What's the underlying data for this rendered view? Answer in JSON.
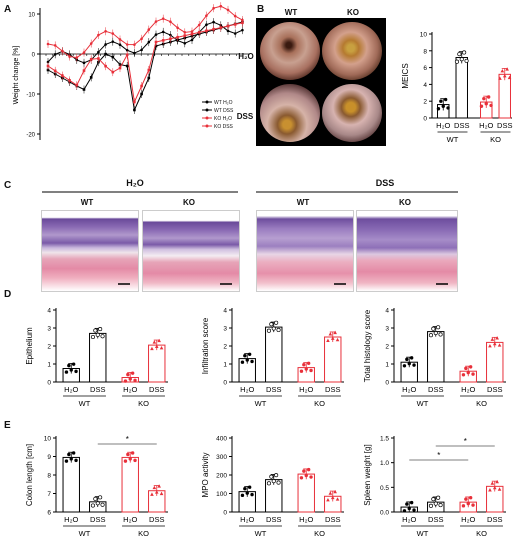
{
  "panels": {
    "A": "A",
    "B": "B",
    "C": "C",
    "D": "D",
    "E": "E"
  },
  "conditions": {
    "h2o": "H₂O",
    "dss": "DSS",
    "wt": "WT",
    "ko": "KO"
  },
  "panelA": {
    "ylabel": "Weight change [%]",
    "yticks": [
      "10",
      "0",
      "-10",
      "-20"
    ],
    "legend": [
      "WT H₂O",
      "WT DSS",
      "KO H₂O",
      "KO DSS"
    ],
    "colors": [
      "#000000",
      "#000000",
      "#e8303a",
      "#e8303a"
    ]
  },
  "panelB": {
    "ylabel": "MEICS",
    "yticks": [
      "0",
      "2",
      "4",
      "6",
      "8",
      "10"
    ],
    "bars": [
      1.6,
      7.2,
      1.9,
      5.2
    ],
    "ymax": 10
  },
  "panelC": {
    "scale_bar": ""
  },
  "panelD": {
    "charts": [
      {
        "ylabel": "Epithelium",
        "yticks": [
          "0",
          "1",
          "2",
          "3",
          "4"
        ],
        "ymax": 4,
        "bars": [
          0.75,
          2.7,
          0.25,
          2.05
        ]
      },
      {
        "ylabel": "Infiltration score",
        "yticks": [
          "0",
          "1",
          "2",
          "3",
          "4"
        ],
        "ymax": 4,
        "bars": [
          1.3,
          3.05,
          0.8,
          2.5
        ]
      },
      {
        "ylabel": "Total histology score",
        "yticks": [
          "0",
          "1",
          "2",
          "3",
          "4"
        ],
        "ymax": 4,
        "bars": [
          1.1,
          2.8,
          0.6,
          2.2
        ]
      }
    ]
  },
  "panelE": {
    "charts": [
      {
        "ylabel": "Colon length [cm]",
        "yticks": [
          "6",
          "7",
          "8",
          "9",
          "10"
        ],
        "ymin": 6,
        "ymax": 10,
        "bars": [
          8.95,
          6.55,
          8.95,
          7.15
        ],
        "sig": [
          "*"
        ]
      },
      {
        "ylabel": "MPO activity",
        "yticks": [
          "0",
          "100",
          "200",
          "300",
          "400"
        ],
        "ymin": 0,
        "ymax": 400,
        "bars": [
          110,
          175,
          205,
          85
        ],
        "sig": []
      },
      {
        "ylabel": "Spleen weight [g]",
        "yticks": [
          "0.0",
          "0.5",
          "1.0",
          "1.5"
        ],
        "ymin": 0,
        "ymax": 1.5,
        "bars": [
          0.1,
          0.2,
          0.2,
          0.52
        ],
        "sig": [
          "*",
          "*"
        ]
      }
    ]
  }
}
